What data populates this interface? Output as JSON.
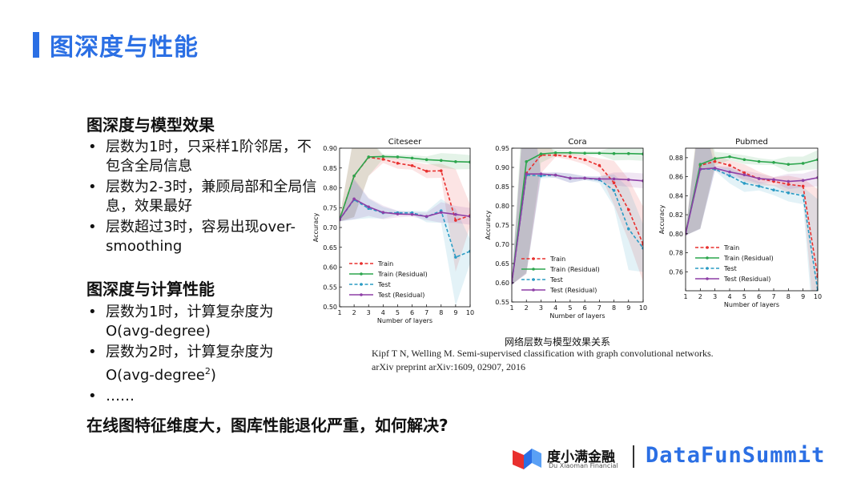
{
  "slide": {
    "title": "图深度与性能",
    "section1": {
      "heading": "图深度与模型效果",
      "bullets": [
        "层数为1时，只采样1阶邻居，不包含全局信息",
        "层数为2-3时，兼顾局部和全局信息，效果最好",
        "层数超过3时，容易出现over-smoothing"
      ]
    },
    "section2": {
      "heading": "图深度与计算性能",
      "bullet1": "层数为1时，计算复杂度为O(avg-degree)",
      "bullet2_main": "层数为2时，计算复杂度为O(avg-degree",
      "bullet2_sup": "2",
      "bullet2_end": ")",
      "bullet3": "……"
    },
    "question": "在线图特征维度大，图库性能退化严重，如何解决?",
    "figure_caption": "网络层数与模型效果关系",
    "reference_line1": "Kipf T N, Welling M. Semi-supervised classification with graph convolutional networks.",
    "reference_line2": "arXiv preprint arXiv:1609, 02907, 2016",
    "footer": {
      "company_cn": "度小满金融",
      "company_en": "Du Xiaoman Financial",
      "event": "DataFunSummit"
    },
    "colors": {
      "accent": "#2b6fe4",
      "train": "#e8302e",
      "train_residual": "#2ca64d",
      "test": "#2a9bc4",
      "test_residual": "#8e3fa6"
    }
  },
  "chart_data": [
    {
      "type": "line",
      "title": "Citeseer",
      "xlabel": "Number of layers",
      "ylabel": "Accuracy",
      "x": [
        1,
        2,
        3,
        4,
        5,
        6,
        7,
        8,
        9,
        10
      ],
      "xlim": [
        1,
        10
      ],
      "ylim": [
        0.5,
        0.9
      ],
      "yticks": [
        0.5,
        0.55,
        0.6,
        0.65,
        0.7,
        0.75,
        0.8,
        0.85,
        0.9
      ],
      "ytick_labels": [
        "0.50",
        "0.55",
        "0.60",
        "0.65",
        "0.70",
        "0.75",
        "0.80",
        "0.85",
        "0.90"
      ],
      "legend_position": "lower-left",
      "series": [
        {
          "name": "Train",
          "style": "dashed",
          "color": "#e8302e",
          "values": [
            0.72,
            0.83,
            0.877,
            0.872,
            0.862,
            0.856,
            0.842,
            0.843,
            0.718,
            0.73
          ]
        },
        {
          "name": "Train (Residual)",
          "style": "solid",
          "color": "#2ca64d",
          "values": [
            0.72,
            0.83,
            0.878,
            0.879,
            0.878,
            0.875,
            0.871,
            0.869,
            0.866,
            0.865
          ]
        },
        {
          "name": "Test",
          "style": "dashed",
          "color": "#2a9bc4",
          "values": [
            0.72,
            0.77,
            0.748,
            0.737,
            0.737,
            0.737,
            0.727,
            0.742,
            0.625,
            0.64
          ]
        },
        {
          "name": "Test (Residual)",
          "style": "solid",
          "color": "#8e3fa6",
          "values": [
            0.72,
            0.772,
            0.752,
            0.738,
            0.734,
            0.733,
            0.728,
            0.738,
            0.733,
            0.728
          ]
        }
      ]
    },
    {
      "type": "line",
      "title": "Cora",
      "xlabel": "Number of layers",
      "ylabel": "Accuracy",
      "x": [
        1,
        2,
        3,
        4,
        5,
        6,
        7,
        8,
        9,
        10
      ],
      "xlim": [
        1,
        10
      ],
      "ylim": [
        0.55,
        0.95
      ],
      "yticks": [
        0.55,
        0.6,
        0.65,
        0.7,
        0.75,
        0.8,
        0.85,
        0.9,
        0.95
      ],
      "ytick_labels": [
        "0.55",
        "0.60",
        "0.65",
        "0.70",
        "0.75",
        "0.80",
        "0.85",
        "0.90",
        "0.95"
      ],
      "legend_position": "lower-left",
      "series": [
        {
          "name": "Train",
          "style": "dashed",
          "color": "#e8302e",
          "values": [
            0.6,
            0.885,
            0.932,
            0.932,
            0.928,
            0.92,
            0.905,
            0.86,
            0.79,
            0.7
          ]
        },
        {
          "name": "Train (Residual)",
          "style": "solid",
          "color": "#2ca64d",
          "values": [
            0.6,
            0.915,
            0.935,
            0.938,
            0.938,
            0.937,
            0.937,
            0.936,
            0.936,
            0.935
          ]
        },
        {
          "name": "Test",
          "style": "dashed",
          "color": "#2a9bc4",
          "values": [
            0.6,
            0.88,
            0.878,
            0.88,
            0.872,
            0.872,
            0.868,
            0.84,
            0.74,
            0.69
          ]
        },
        {
          "name": "Test (Residual)",
          "style": "solid",
          "color": "#8e3fa6",
          "values": [
            0.6,
            0.883,
            0.883,
            0.88,
            0.872,
            0.872,
            0.87,
            0.87,
            0.868,
            0.865
          ]
        }
      ]
    },
    {
      "type": "line",
      "title": "Pubmed",
      "xlabel": "Number of layers",
      "ylabel": "Accuracy",
      "x": [
        1,
        2,
        3,
        4,
        5,
        6,
        7,
        8,
        9,
        10
      ],
      "xlim": [
        1,
        10
      ],
      "ylim": [
        0.74,
        0.89
      ],
      "yticks": [
        0.76,
        0.78,
        0.8,
        0.82,
        0.84,
        0.86,
        0.88
      ],
      "ytick_labels": [
        "0.76",
        "0.78",
        "0.80",
        "0.82",
        "0.84",
        "0.86",
        "0.88"
      ],
      "legend_position": "lower-left",
      "series": [
        {
          "name": "Train",
          "style": "dashed",
          "color": "#e8302e",
          "values": [
            0.8,
            0.872,
            0.876,
            0.872,
            0.864,
            0.858,
            0.855,
            0.852,
            0.85,
            0.755
          ]
        },
        {
          "name": "Train (Residual)",
          "style": "solid",
          "color": "#2ca64d",
          "values": [
            0.8,
            0.873,
            0.879,
            0.881,
            0.878,
            0.876,
            0.875,
            0.873,
            0.874,
            0.878
          ]
        },
        {
          "name": "Test",
          "style": "dashed",
          "color": "#2a9bc4",
          "values": [
            0.8,
            0.868,
            0.868,
            0.861,
            0.853,
            0.85,
            0.846,
            0.843,
            0.84,
            0.74
          ]
        },
        {
          "name": "Test (Residual)",
          "style": "solid",
          "color": "#8e3fa6",
          "values": [
            0.8,
            0.868,
            0.869,
            0.865,
            0.862,
            0.858,
            0.857,
            0.855,
            0.856,
            0.859
          ]
        }
      ]
    }
  ]
}
